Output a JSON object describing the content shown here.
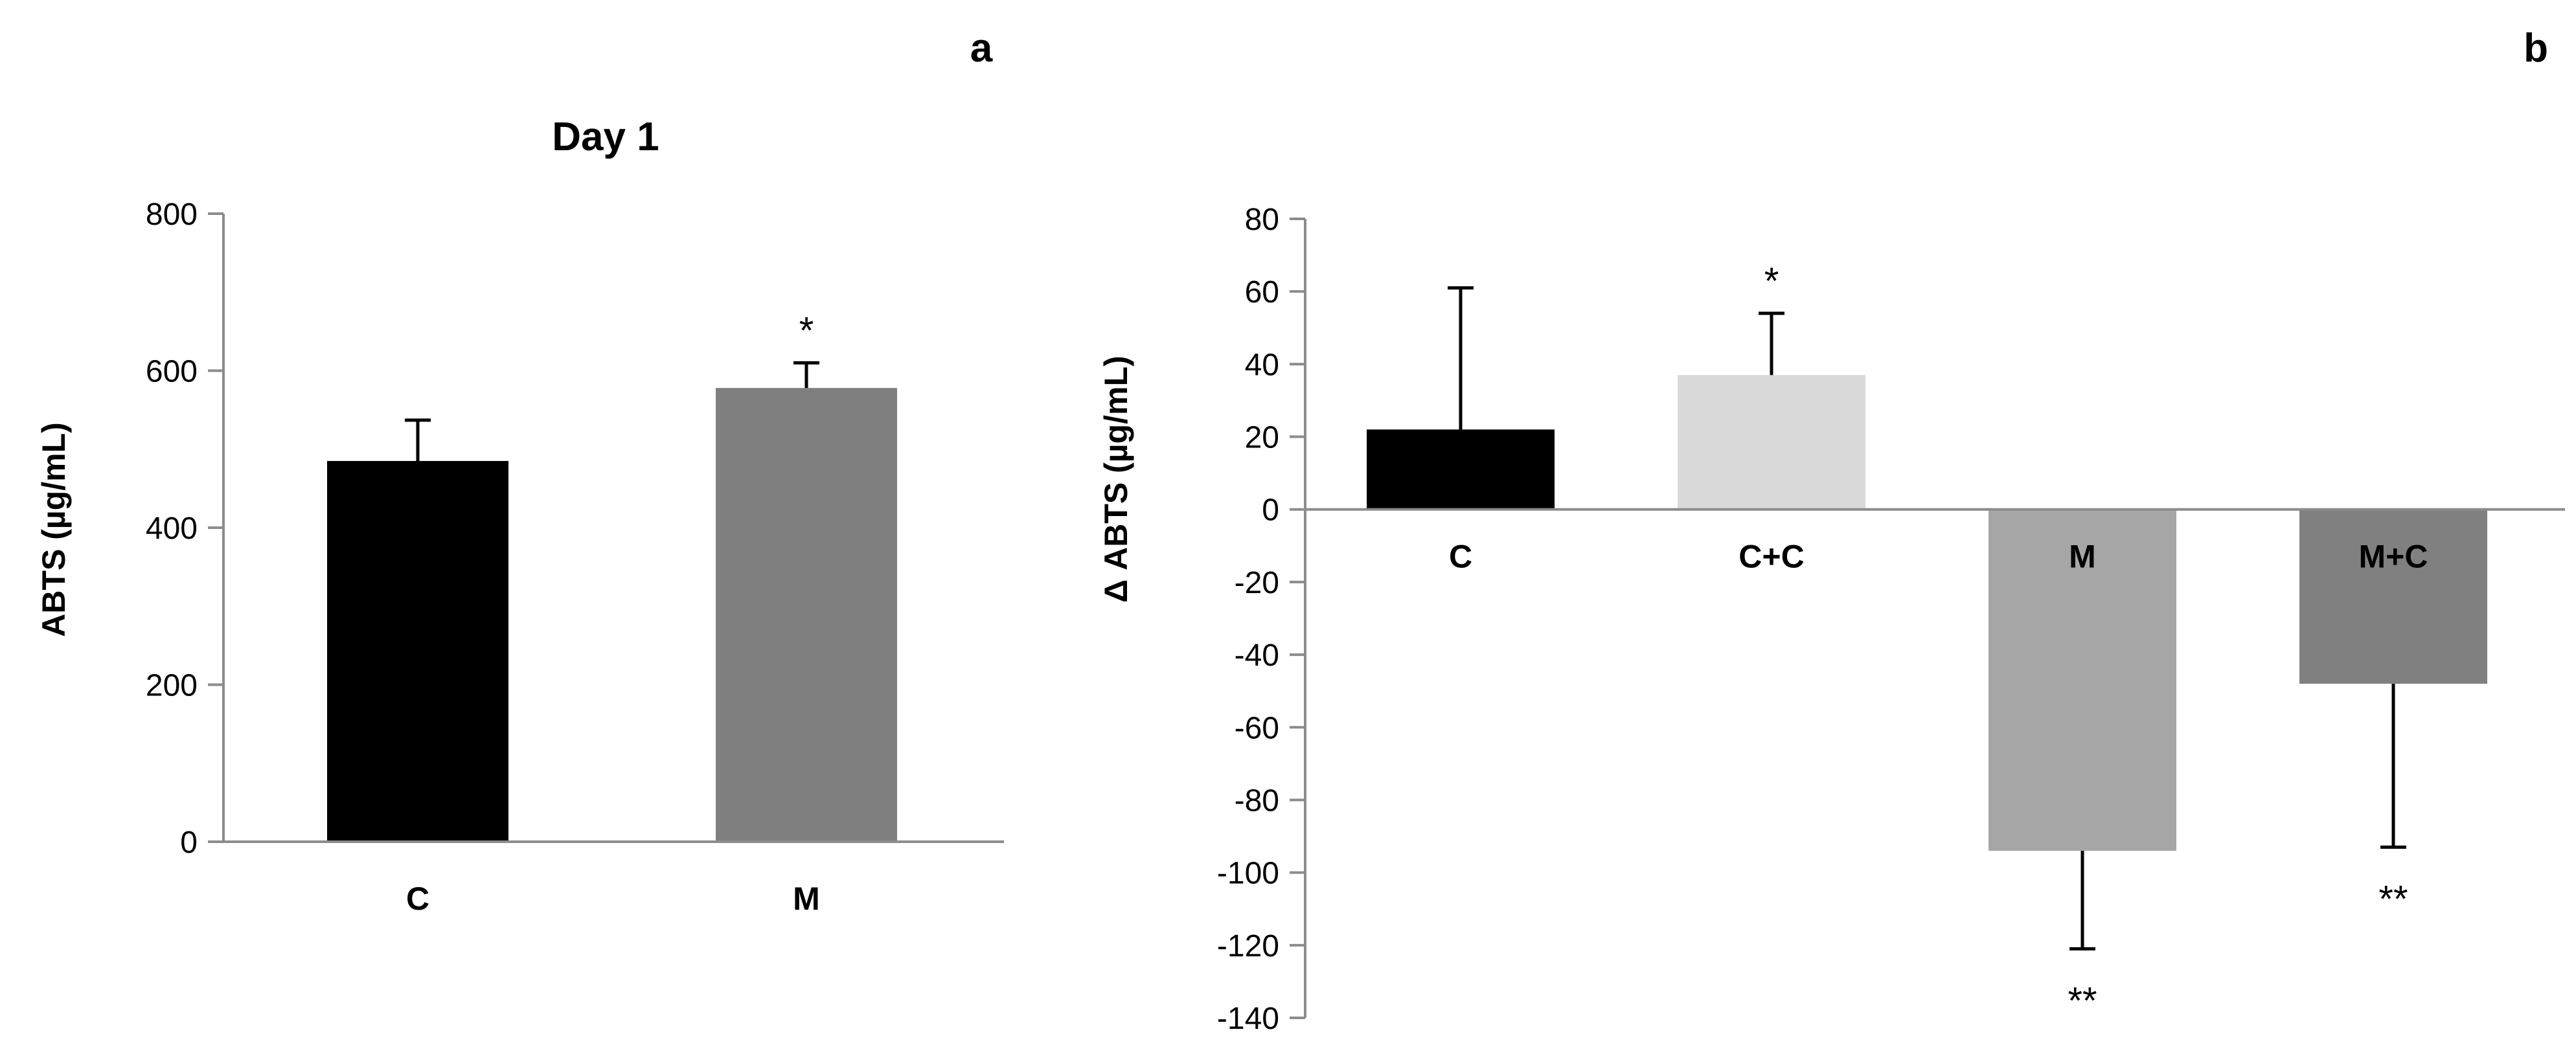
{
  "chart_data": [
    {
      "panel_label": "a",
      "type": "bar",
      "title": "Day 1",
      "ylabel": "ABTS  (µg/mL)",
      "xlabel": "",
      "ylim": [
        0,
        800
      ],
      "yticks": [
        0,
        200,
        400,
        600,
        800
      ],
      "categories": [
        "C",
        "M"
      ],
      "values": [
        485,
        578
      ],
      "errors": [
        52,
        32
      ],
      "annotations": [
        "",
        "*"
      ],
      "colors": [
        "#000000",
        "#7f7f7f"
      ]
    },
    {
      "panel_label": "b",
      "type": "bar",
      "title": "",
      "ylabel": "Δ ABTS  (µg/mL)",
      "xlabel": "",
      "ylim": [
        -140,
        80
      ],
      "yticks": [
        -140,
        -120,
        -100,
        -80,
        -60,
        -40,
        -20,
        0,
        20,
        40,
        60,
        80
      ],
      "categories": [
        "C",
        "C+C",
        "M",
        "M+C"
      ],
      "values": [
        22,
        37,
        -94,
        -48
      ],
      "errors": [
        39,
        17,
        27,
        45
      ],
      "annotations": [
        "",
        "*",
        "**",
        "**"
      ],
      "colors": [
        "#000000",
        "#d9d9d9",
        "#a6a6a6",
        "#808080"
      ]
    }
  ]
}
